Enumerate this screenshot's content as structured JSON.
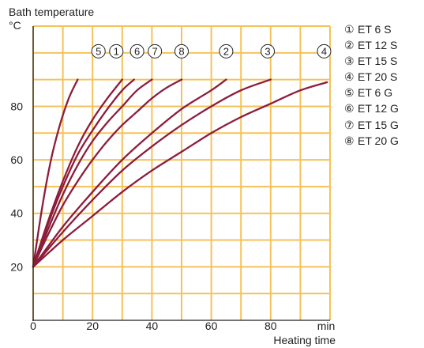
{
  "chart_data": {
    "type": "line",
    "ylabel_line1": "Bath temperature",
    "ylabel_unit": "°C",
    "xlabel": "Heating time",
    "x_unit": "min",
    "xlim": [
      0,
      100
    ],
    "ylim": [
      0,
      110
    ],
    "x_gridlines": [
      0,
      10,
      20,
      30,
      40,
      50,
      60,
      70,
      80,
      90,
      100
    ],
    "y_gridlines": [
      10,
      20,
      30,
      40,
      50,
      60,
      70,
      80,
      90,
      100,
      110
    ],
    "x_ticks": [
      0,
      20,
      40,
      60,
      80
    ],
    "y_ticks": [
      20,
      40,
      60,
      80
    ],
    "grid": true,
    "colors": {
      "grid": "#f5c25a",
      "line": "#8c1d3c",
      "axis": "#222222"
    },
    "series": [
      {
        "name": "ET 6 S",
        "marker": "①",
        "label_x": 28,
        "points": [
          [
            0,
            20
          ],
          [
            5,
            37
          ],
          [
            10,
            52
          ],
          [
            15,
            65
          ],
          [
            20,
            75
          ],
          [
            25,
            83
          ],
          [
            30,
            90
          ]
        ]
      },
      {
        "name": "ET 12 S",
        "marker": "②",
        "label_x": 65,
        "points": [
          [
            0,
            20
          ],
          [
            10,
            35
          ],
          [
            20,
            48
          ],
          [
            30,
            60
          ],
          [
            40,
            70
          ],
          [
            50,
            79
          ],
          [
            60,
            86
          ],
          [
            65,
            90
          ]
        ]
      },
      {
        "name": "ET 15 S",
        "marker": "③",
        "label_x": 79,
        "points": [
          [
            0,
            20
          ],
          [
            10,
            33
          ],
          [
            20,
            45
          ],
          [
            30,
            56
          ],
          [
            40,
            65
          ],
          [
            50,
            73
          ],
          [
            60,
            80
          ],
          [
            70,
            86
          ],
          [
            80,
            90
          ]
        ]
      },
      {
        "name": "ET 20 S",
        "marker": "④",
        "label_x": 98,
        "points": [
          [
            0,
            20
          ],
          [
            10,
            30
          ],
          [
            20,
            39
          ],
          [
            30,
            48
          ],
          [
            40,
            56
          ],
          [
            50,
            63
          ],
          [
            60,
            70
          ],
          [
            70,
            76
          ],
          [
            80,
            81
          ],
          [
            90,
            86
          ],
          [
            99,
            89
          ]
        ]
      },
      {
        "name": "ET 6 G",
        "marker": "⑤",
        "label_x": 15,
        "points": [
          [
            0,
            20
          ],
          [
            3,
            42
          ],
          [
            6,
            60
          ],
          [
            9,
            73
          ],
          [
            12,
            83
          ],
          [
            15,
            90
          ]
        ]
      },
      {
        "name": "ET 12 G",
        "marker": "⑥",
        "label_x": 35,
        "points": [
          [
            0,
            20
          ],
          [
            5,
            36
          ],
          [
            10,
            50
          ],
          [
            15,
            62
          ],
          [
            20,
            71
          ],
          [
            25,
            79
          ],
          [
            30,
            86
          ],
          [
            34,
            90
          ]
        ]
      },
      {
        "name": "ET 15 G",
        "marker": "⑦",
        "label_x": 41,
        "points": [
          [
            0,
            20
          ],
          [
            5,
            34
          ],
          [
            10,
            47
          ],
          [
            15,
            58
          ],
          [
            20,
            67
          ],
          [
            25,
            74
          ],
          [
            30,
            80
          ],
          [
            35,
            86
          ],
          [
            40,
            90
          ]
        ]
      },
      {
        "name": "ET 20 G",
        "marker": "⑧",
        "label_x": 50,
        "points": [
          [
            0,
            20
          ],
          [
            5,
            32
          ],
          [
            10,
            43
          ],
          [
            15,
            52
          ],
          [
            20,
            60
          ],
          [
            25,
            67
          ],
          [
            30,
            73
          ],
          [
            35,
            78
          ],
          [
            40,
            83
          ],
          [
            45,
            87
          ],
          [
            50,
            90
          ]
        ]
      }
    ],
    "legend": [
      {
        "marker": "①",
        "label": "ET 6 S"
      },
      {
        "marker": "②",
        "label": "ET 12 S"
      },
      {
        "marker": "③",
        "label": "ET 15 S"
      },
      {
        "marker": "④",
        "label": "ET 20 S"
      },
      {
        "marker": "⑤",
        "label": "ET 6 G"
      },
      {
        "marker": "⑥",
        "label": "ET 12 G"
      },
      {
        "marker": "⑦",
        "label": "ET 15 G"
      },
      {
        "marker": "⑧",
        "label": "ET 20 G"
      }
    ],
    "curve_label_markers": [
      "5",
      "1",
      "6",
      "7",
      "8",
      "2",
      "3",
      "4"
    ],
    "curve_label_x": [
      22,
      28,
      35,
      41,
      50,
      65,
      79,
      98
    ]
  }
}
